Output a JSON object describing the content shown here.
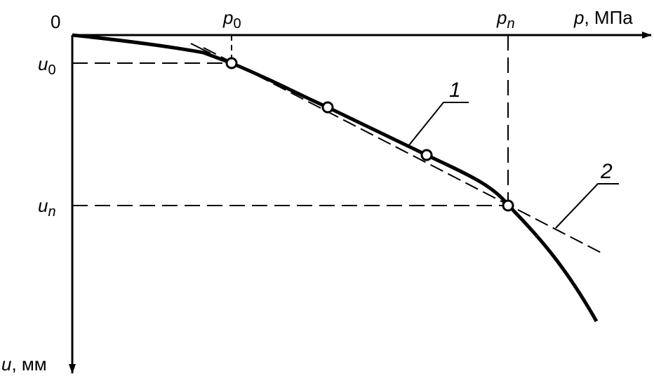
{
  "labels": {
    "origin": "0",
    "p0": {
      "main": "p",
      "sub": "0"
    },
    "pn": {
      "main": "p",
      "sub": "n"
    },
    "x_axis": {
      "var": "p",
      "unit": ", МПа"
    },
    "u0": {
      "main": "u",
      "sub": "0"
    },
    "un": {
      "main": "u",
      "sub": "n"
    },
    "y_axis": {
      "var": "u",
      "unit": ", мм"
    },
    "curve_1": "1",
    "curve_2": "2"
  }
}
